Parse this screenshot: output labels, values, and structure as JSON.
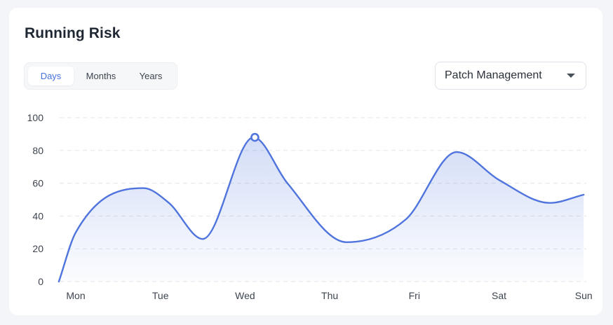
{
  "header": {
    "title": "Running Risk"
  },
  "range_tabs": [
    {
      "label": "Days",
      "active": true
    },
    {
      "label": "Months",
      "active": false
    },
    {
      "label": "Years",
      "active": false
    }
  ],
  "filter": {
    "selected": "Patch Management"
  },
  "colors": {
    "accent": "#4a72dc",
    "line": "#4f74dd",
    "grid": "#e3e5ea"
  },
  "chart_data": {
    "type": "area",
    "title": "Running Risk",
    "categories": [
      "Mon",
      "Tue",
      "Wed",
      "Thu",
      "Fri",
      "Sat",
      "Sun"
    ],
    "y_ticks": [
      0,
      20,
      40,
      60,
      80,
      100
    ],
    "ylim": [
      0,
      100
    ],
    "grid": true,
    "series": [
      {
        "name": "Running Risk",
        "x": [
          -0.2,
          0.0,
          0.8,
          1.1,
          1.5,
          2.1,
          2.5,
          3.2,
          3.9,
          4.5,
          5.0,
          5.6,
          6.0
        ],
        "values": [
          0,
          30,
          57,
          48,
          26,
          88,
          60,
          24,
          38,
          79,
          62,
          48,
          53
        ]
      }
    ],
    "highlight": {
      "category": "Wed",
      "value": 88
    }
  }
}
